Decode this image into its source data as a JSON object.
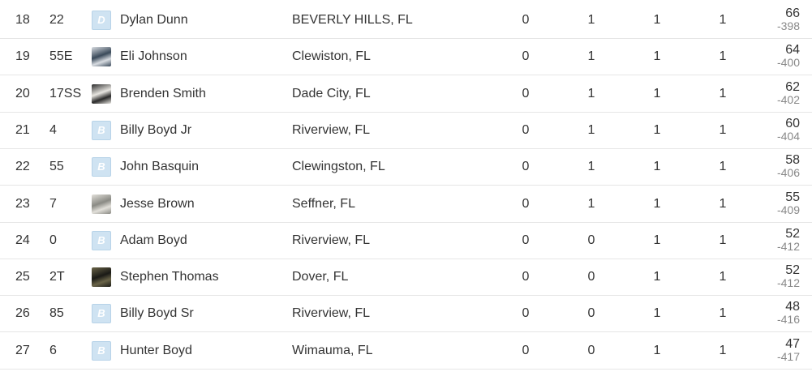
{
  "standings": [
    {
      "pos": "18",
      "num": "22",
      "avatar": {
        "type": "letter",
        "letter": "D"
      },
      "driver": "Dylan Dunn",
      "home": "BEVERLY HILLS, FL",
      "s1": "0",
      "s2": "1",
      "s3": "1",
      "s4": "1",
      "points": "66",
      "behind": "-398"
    },
    {
      "pos": "19",
      "num": "55E",
      "avatar": {
        "type": "photo",
        "icon": "car-photo-icon",
        "colors": [
          "#3a4a5a",
          "#d9dde2"
        ]
      },
      "driver": "Eli Johnson",
      "home": "Clewiston, FL",
      "s1": "0",
      "s2": "1",
      "s3": "1",
      "s4": "1",
      "points": "64",
      "behind": "-400"
    },
    {
      "pos": "20",
      "num": "17SS",
      "avatar": {
        "type": "photo",
        "icon": "driver-photo-icon",
        "colors": [
          "#e8e6e1",
          "#2a2a2a"
        ]
      },
      "driver": "Brenden Smith",
      "home": "Dade City, FL",
      "s1": "0",
      "s2": "1",
      "s3": "1",
      "s4": "1",
      "points": "62",
      "behind": "-402"
    },
    {
      "pos": "21",
      "num": "4",
      "avatar": {
        "type": "letter",
        "letter": "B"
      },
      "driver": "Billy Boyd Jr",
      "home": "Riverview, FL",
      "s1": "0",
      "s2": "1",
      "s3": "1",
      "s4": "1",
      "points": "60",
      "behind": "-404"
    },
    {
      "pos": "22",
      "num": "55",
      "avatar": {
        "type": "letter",
        "letter": "B"
      },
      "driver": "John Basquin",
      "home": "Clewingston, FL",
      "s1": "0",
      "s2": "1",
      "s3": "1",
      "s4": "1",
      "points": "58",
      "behind": "-406"
    },
    {
      "pos": "23",
      "num": "7",
      "avatar": {
        "type": "photo",
        "icon": "car-photo-icon",
        "colors": [
          "#8a8a84",
          "#e2e0da"
        ]
      },
      "driver": "Jesse Brown",
      "home": "Seffner, FL",
      "s1": "0",
      "s2": "1",
      "s3": "1",
      "s4": "1",
      "points": "55",
      "behind": "-409"
    },
    {
      "pos": "24",
      "num": "0",
      "avatar": {
        "type": "letter",
        "letter": "B"
      },
      "driver": "Adam Boyd",
      "home": "Riverview, FL",
      "s1": "0",
      "s2": "0",
      "s3": "1",
      "s4": "1",
      "points": "52",
      "behind": "-412"
    },
    {
      "pos": "25",
      "num": "2T",
      "avatar": {
        "type": "photo",
        "icon": "car-photo-icon",
        "colors": [
          "#1a1a16",
          "#6a6448"
        ]
      },
      "driver": "Stephen Thomas",
      "home": "Dover, FL",
      "s1": "0",
      "s2": "0",
      "s3": "1",
      "s4": "1",
      "points": "52",
      "behind": "-412"
    },
    {
      "pos": "26",
      "num": "85",
      "avatar": {
        "type": "letter",
        "letter": "B"
      },
      "driver": "Billy Boyd Sr",
      "home": "Riverview, FL",
      "s1": "0",
      "s2": "0",
      "s3": "1",
      "s4": "1",
      "points": "48",
      "behind": "-416"
    },
    {
      "pos": "27",
      "num": "6",
      "avatar": {
        "type": "letter",
        "letter": "B"
      },
      "driver": "Hunter Boyd",
      "home": "Wimauma, FL",
      "s1": "0",
      "s2": "0",
      "s3": "1",
      "s4": "1",
      "points": "47",
      "behind": "-417"
    }
  ]
}
